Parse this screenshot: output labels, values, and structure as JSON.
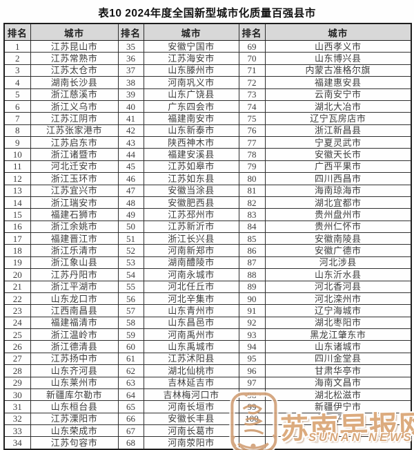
{
  "page": {
    "title": "表10  2024年度全国新型城市化质量百强县市"
  },
  "table": {
    "headers": [
      "排名",
      "城市",
      "排名",
      "城市",
      "排名",
      "城市"
    ],
    "rows": [
      [
        "1",
        "江苏昆山市",
        "35",
        "安徽宁国市",
        "69",
        "山西孝义市"
      ],
      [
        "2",
        "江苏常熟市",
        "36",
        "江苏海安市",
        "70",
        "山东博兴县"
      ],
      [
        "3",
        "江苏太仓市",
        "37",
        "山东滕州市",
        "71",
        "内蒙古准格尔旗"
      ],
      [
        "4",
        "湖南长沙县",
        "38",
        "河南巩义市",
        "72",
        "福建惠安县"
      ],
      [
        "5",
        "浙江慈溪市",
        "39",
        "山东广饶县",
        "73",
        "云南安宁市"
      ],
      [
        "6",
        "浙江义乌市",
        "40",
        "广东四会市",
        "74",
        "湖北大冶市"
      ],
      [
        "7",
        "江苏江阴市",
        "41",
        "福建南安市",
        "75",
        "辽宁瓦房店市"
      ],
      [
        "8",
        "江苏张家港市",
        "42",
        "山东新泰市",
        "76",
        "浙江新昌县"
      ],
      [
        "9",
        "江苏启东市",
        "43",
        "陕西神木市",
        "77",
        "宁夏灵武市"
      ],
      [
        "10",
        "浙江诸暨市",
        "44",
        "福建安溪县",
        "78",
        "安徽天长市"
      ],
      [
        "11",
        "河北迁安市",
        "45",
        "江苏如皋市",
        "79",
        "广西平果市"
      ],
      [
        "12",
        "浙江玉环市",
        "46",
        "江苏如东县",
        "80",
        "四川西昌市"
      ],
      [
        "13",
        "江苏宜兴市",
        "47",
        "安徽当涂县",
        "81",
        "海南琼海市"
      ],
      [
        "14",
        "浙江瑞安市",
        "48",
        "安徽肥西县",
        "82",
        "湖北宜都市"
      ],
      [
        "15",
        "福建石狮市",
        "49",
        "江苏邳州市",
        "83",
        "贵州盘州市"
      ],
      [
        "16",
        "浙江余姚市",
        "50",
        "江苏新沂市",
        "84",
        "贵州仁怀市"
      ],
      [
        "17",
        "福建晋江市",
        "51",
        "浙江长兴县",
        "85",
        "安徽南陵县"
      ],
      [
        "18",
        "浙江乐清市",
        "52",
        "河南新郑市",
        "86",
        "安徽广德市"
      ],
      [
        "19",
        "浙江象山县",
        "53",
        "湖南醴陵市",
        "87",
        "河北涉县"
      ],
      [
        "20",
        "江苏丹阳市",
        "54",
        "河南永城市",
        "88",
        "山东沂水县"
      ],
      [
        "21",
        "浙江平湖市",
        "55",
        "河北任丘市",
        "89",
        "河北香河县"
      ],
      [
        "22",
        "山东龙口市",
        "56",
        "河北辛集市",
        "90",
        "河北滦州市"
      ],
      [
        "23",
        "江西南昌县",
        "57",
        "山东青州市",
        "91",
        "辽宁海城市"
      ],
      [
        "24",
        "福建福清市",
        "58",
        "山东昌邑市",
        "92",
        "湖北枣阳市"
      ],
      [
        "25",
        "浙江温岭市",
        "59",
        "河南禹州市",
        "93",
        "黑龙江肇东市"
      ],
      [
        "26",
        "浙江德清县",
        "60",
        "山东禹城市",
        "94",
        "山东诸城市"
      ],
      [
        "27",
        "江苏扬中市",
        "61",
        "江苏沭阳县",
        "95",
        "四川金堂县"
      ],
      [
        "28",
        "山东齐河县",
        "62",
        "湖北仙桃市",
        "96",
        "甘肃华亭市"
      ],
      [
        "29",
        "山东莱州市",
        "63",
        "吉林延吉市",
        "97",
        "海南文昌市"
      ],
      [
        "30",
        "新疆库尔勒市",
        "64",
        "吉林梅河口市",
        "98",
        "湖北松滋市"
      ],
      [
        "31",
        "山东桓台县",
        "65",
        "河南长垣市",
        "99",
        "新疆伊宁市"
      ],
      [
        "32",
        "江苏溧阳市",
        "66",
        "安徽长丰县",
        "100",
        "宁夏平罗县"
      ],
      [
        "33",
        "山东荣成市",
        "67",
        "河南长葛市",
        "",
        ""
      ],
      [
        "34",
        "江苏句容市",
        "68",
        "河南荥阳市",
        "",
        ""
      ]
    ]
  },
  "watermark": {
    "text": "苏南早报网",
    "subtext": "SUNAN NEWS",
    "color": "#dcab7e"
  },
  "colors": {
    "header_bg": "#d8d8d8",
    "border": "#2e2e2e",
    "cell_text": "#3d3d3d"
  }
}
